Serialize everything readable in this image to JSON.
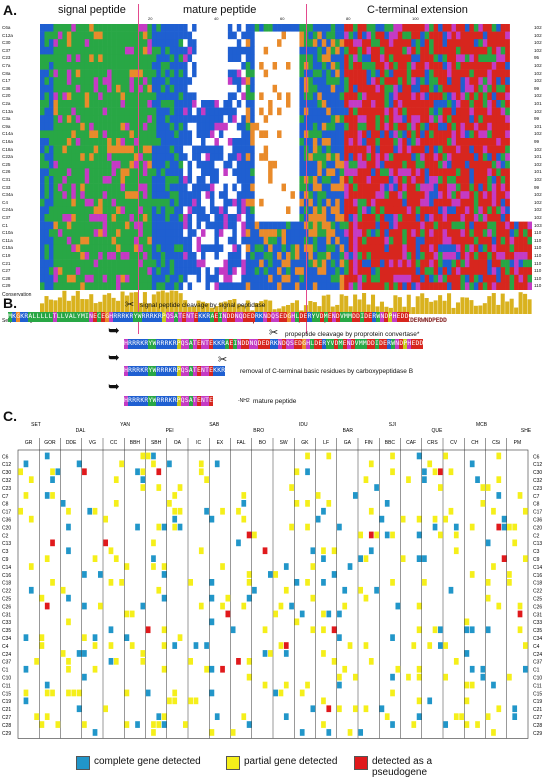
{
  "panel_a": {
    "letter": "A.",
    "regions": [
      "signal peptide",
      "mature peptide",
      "C-terminal extension"
    ],
    "tick_numbers": [
      "20",
      "40",
      "60",
      "80",
      "100"
    ],
    "sequences": [
      {
        "name": "C6a",
        "len": "102"
      },
      {
        "name": "C12a",
        "len": "102"
      },
      {
        "name": "C30",
        "len": "102"
      },
      {
        "name": "C37",
        "len": "102"
      },
      {
        "name": "C23",
        "len": "95"
      },
      {
        "name": "C7a",
        "len": "102"
      },
      {
        "name": "C8a",
        "len": "102"
      },
      {
        "name": "C17",
        "len": "102"
      },
      {
        "name": "C36",
        "len": "99"
      },
      {
        "name": "C20",
        "len": "102"
      },
      {
        "name": "C2a",
        "len": "101"
      },
      {
        "name": "C13a",
        "len": "102"
      },
      {
        "name": "C3a",
        "len": "99"
      },
      {
        "name": "C9a",
        "len": "101"
      },
      {
        "name": "C14a",
        "len": "102"
      },
      {
        "name": "C16a",
        "len": "99"
      },
      {
        "name": "C18a",
        "len": "102"
      },
      {
        "name": "C22a",
        "len": "101"
      },
      {
        "name": "C25",
        "len": "102"
      },
      {
        "name": "C26",
        "len": "101"
      },
      {
        "name": "C31",
        "len": "102"
      },
      {
        "name": "C33",
        "len": "99"
      },
      {
        "name": "C34a",
        "len": "102"
      },
      {
        "name": "C4",
        "len": "102"
      },
      {
        "name": "C24a",
        "len": "102"
      },
      {
        "name": "C37",
        "len": "102"
      },
      {
        "name": "C1",
        "len": "103"
      },
      {
        "name": "C10a",
        "len": "110"
      },
      {
        "name": "C11a",
        "len": "110"
      },
      {
        "name": "C15a",
        "len": "110"
      },
      {
        "name": "C19",
        "len": "110"
      },
      {
        "name": "C21",
        "len": "110"
      },
      {
        "name": "C27",
        "len": "110"
      },
      {
        "name": "C28",
        "len": "110"
      },
      {
        "name": "C29",
        "len": "110"
      }
    ],
    "conservation_label": "Conservation",
    "logo_label": "Sequence logo",
    "logo_text": "MKGVLLLLTLLVALYMINECEG HRR RKRYWR.. RBrYvorRovvrcoEKkeTiNTpRKR EeINDDwQDEDYRwQDSEDaHLDERYVDM.NDVMMDDIDERWNDPEDD"
  },
  "panel_b": {
    "letter": "B.",
    "seq_full": "MKGKRALLLLLTLLVALYMINECEGHRRRKRYWRRRKRPQSATENTEKKRAEINDDNQDEDRKNDQSEDGHLDERYVDMENDVMMDDIDERWNDPHEDD",
    "steps": [
      {
        "text": "signal peptide cleavage by signal peptidase"
      },
      {
        "text": "propeptide cleavage by proprotein convertase*"
      },
      {
        "text": "removal of C-terminal basic residues by carboxypeptidase B"
      },
      {
        "text": "mature peptide"
      }
    ],
    "seq_step1": "HRRRKRYWRRRKRPQSATENTEKKRAEINDDNQDEDRKNDQSEDGHLDERYVDMENDVMMDDIDERWNDPHEDD",
    "seq_step2": "HRRRKRYWRRRKRPQSATENTEKKR",
    "seq_step3": "HRRRKRYWRRRKRPQSATENTE",
    "amide": "-NH2"
  },
  "panel_c": {
    "letter": "C.",
    "top_groups": [
      "SET",
      "DAL",
      "YAN",
      "PEI",
      "SAB",
      "BRO",
      "IDU",
      "BAR",
      "SJI",
      "QUE",
      "MCB",
      "SHE"
    ],
    "columns": [
      "GR",
      "GOR",
      "DDE",
      "VG",
      "CC",
      "BBH",
      "SBH",
      "OA",
      "IC",
      "EX",
      "FAL",
      "BO",
      "SW",
      "GK",
      "LF",
      "GA",
      "FIN",
      "BBC",
      "CAF",
      "CRS",
      "CV",
      "CH",
      "CSi",
      "PM"
    ],
    "rows": [
      "C6",
      "C12",
      "C30",
      "C32",
      "C23",
      "C7",
      "C8",
      "C17",
      "C36",
      "C20",
      "C2",
      "C13",
      "C3",
      "C9",
      "C14",
      "C16",
      "C18",
      "C22",
      "C25",
      "C26",
      "C31",
      "C33",
      "C35",
      "C34",
      "C4",
      "C24",
      "C37",
      "C1",
      "C10",
      "C11",
      "C15",
      "C19",
      "C21",
      "C27",
      "C28",
      "C29"
    ],
    "legend": [
      {
        "label": "complete gene detected",
        "color": "#2196c9"
      },
      {
        "label": "partial gene detected",
        "color": "#f5ef1a"
      },
      {
        "label": "detected as a pseudogene",
        "color": "#e0191c"
      }
    ]
  },
  "colors": {
    "hydrophobic_green": "#28a745",
    "basic_blue": "#1f5fd1",
    "acidic_red": "#d7261e",
    "polar_magenta": "#c43bc4",
    "gly_orange": "#e98b2b",
    "conservation_bar": "#d9b21e",
    "divider_pink": "#e34a8d"
  }
}
